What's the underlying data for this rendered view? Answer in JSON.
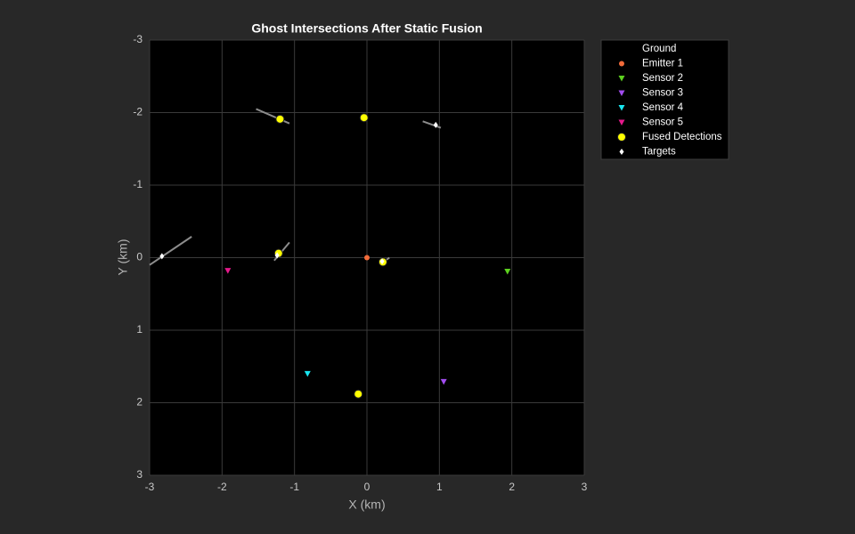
{
  "chart_data": {
    "type": "scatter",
    "title": "Ghost Intersections After Static Fusion",
    "xlabel": "X (km)",
    "ylabel": "Y (km)",
    "xlim": [
      -3,
      3
    ],
    "ylim": [
      -3,
      3
    ],
    "y_reversed": true,
    "xticks": [
      -3,
      -2,
      -1,
      0,
      1,
      2,
      3
    ],
    "yticks": [
      -3,
      -2,
      -1,
      0,
      1,
      2,
      3
    ],
    "grid": true,
    "legend_position": "outside-right",
    "series": [
      {
        "name": "Ground",
        "marker": "line",
        "color": "#8c8c8c",
        "x": [
          -1.53,
          -1.07,
          null,
          0.77,
          1.02,
          null,
          -3.0,
          -2.42,
          null,
          -1.28,
          -1.07,
          null,
          0.2,
          0.31
        ],
        "values": [
          -2.05,
          -1.85,
          null,
          -1.88,
          -1.79,
          null,
          0.1,
          -0.29,
          null,
          0.04,
          -0.21,
          null,
          0.08,
          0.0
        ]
      },
      {
        "name": "Emitter 1",
        "marker": "circle",
        "color": "#f26b3a",
        "x": [
          0.0
        ],
        "values": [
          0.0
        ]
      },
      {
        "name": "Sensor 2",
        "marker": "triangle-down",
        "color": "#5dd11f",
        "x": [
          1.94
        ],
        "values": [
          0.19
        ]
      },
      {
        "name": "Sensor 3",
        "marker": "triangle-down",
        "color": "#a24cf0",
        "x": [
          1.06
        ],
        "values": [
          1.71
        ]
      },
      {
        "name": "Sensor 4",
        "marker": "triangle-down",
        "color": "#19e6f0",
        "x": [
          -0.82
        ],
        "values": [
          1.6
        ]
      },
      {
        "name": "Sensor 5",
        "marker": "triangle-down",
        "color": "#e6198c",
        "x": [
          -1.92
        ],
        "values": [
          0.18
        ]
      },
      {
        "name": "Fused Detections",
        "marker": "big-circle",
        "color": "#ffff00",
        "x": [
          -1.2,
          -0.04,
          -1.22,
          0.22,
          -0.12
        ],
        "values": [
          -1.91,
          -1.93,
          -0.06,
          0.06,
          1.88
        ]
      },
      {
        "name": "Targets",
        "marker": "diamond",
        "color": "#ffffff",
        "x": [
          0.95,
          -2.83,
          -1.24,
          0.21
        ],
        "values": [
          -1.83,
          -0.02,
          -0.03,
          0.05
        ]
      }
    ]
  }
}
